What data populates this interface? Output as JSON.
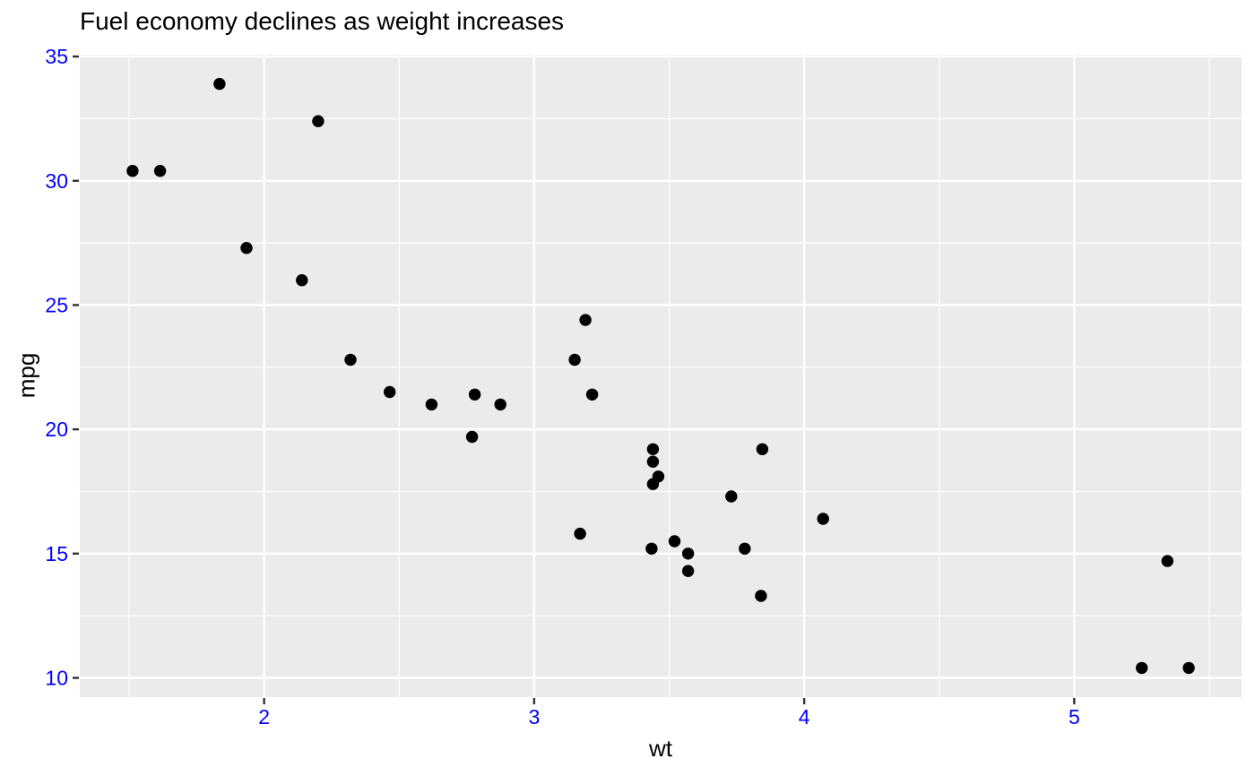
{
  "chart_data": {
    "type": "scatter",
    "title": "Fuel economy declines as weight increases",
    "xlabel": "wt",
    "ylabel": "mpg",
    "x": [
      2.62,
      2.875,
      2.32,
      3.215,
      3.44,
      3.46,
      3.57,
      3.19,
      3.15,
      3.44,
      3.44,
      4.07,
      3.73,
      3.78,
      5.25,
      5.424,
      5.345,
      2.2,
      1.615,
      1.835,
      2.465,
      3.52,
      3.435,
      3.84,
      3.845,
      1.935,
      2.14,
      1.513,
      3.17,
      2.77,
      3.57,
      2.78
    ],
    "y": [
      21.0,
      21.0,
      22.8,
      21.4,
      18.7,
      18.1,
      14.3,
      24.4,
      22.8,
      19.2,
      17.8,
      16.4,
      17.3,
      15.2,
      10.4,
      10.4,
      14.7,
      32.4,
      30.4,
      33.9,
      21.5,
      15.5,
      15.2,
      13.3,
      19.2,
      27.3,
      26.0,
      30.4,
      15.8,
      19.7,
      15.0,
      21.4
    ],
    "xlim": [
      1.3174,
      5.6196
    ],
    "ylim": [
      9.225,
      35.075
    ],
    "x_major_ticks": [
      2,
      3,
      4,
      5
    ],
    "x_minor_ticks": [
      1.5,
      2.5,
      3.5,
      4.5,
      5.5
    ],
    "y_major_ticks": [
      10,
      15,
      20,
      25,
      30,
      35
    ],
    "y_minor_ticks": [
      12.5,
      17.5,
      22.5,
      27.5,
      32.5
    ],
    "legend_position": "none",
    "grid": "on",
    "style": {
      "background": "#FFFFFF",
      "panel_bg": "#EBEBEB",
      "grid_color": "#FFFFFF",
      "point_color": "#000000",
      "point_radius": 6.7,
      "tick_label_color": "#0000FF",
      "tick_mark_color": "#333333",
      "text_color": "#000000"
    }
  }
}
